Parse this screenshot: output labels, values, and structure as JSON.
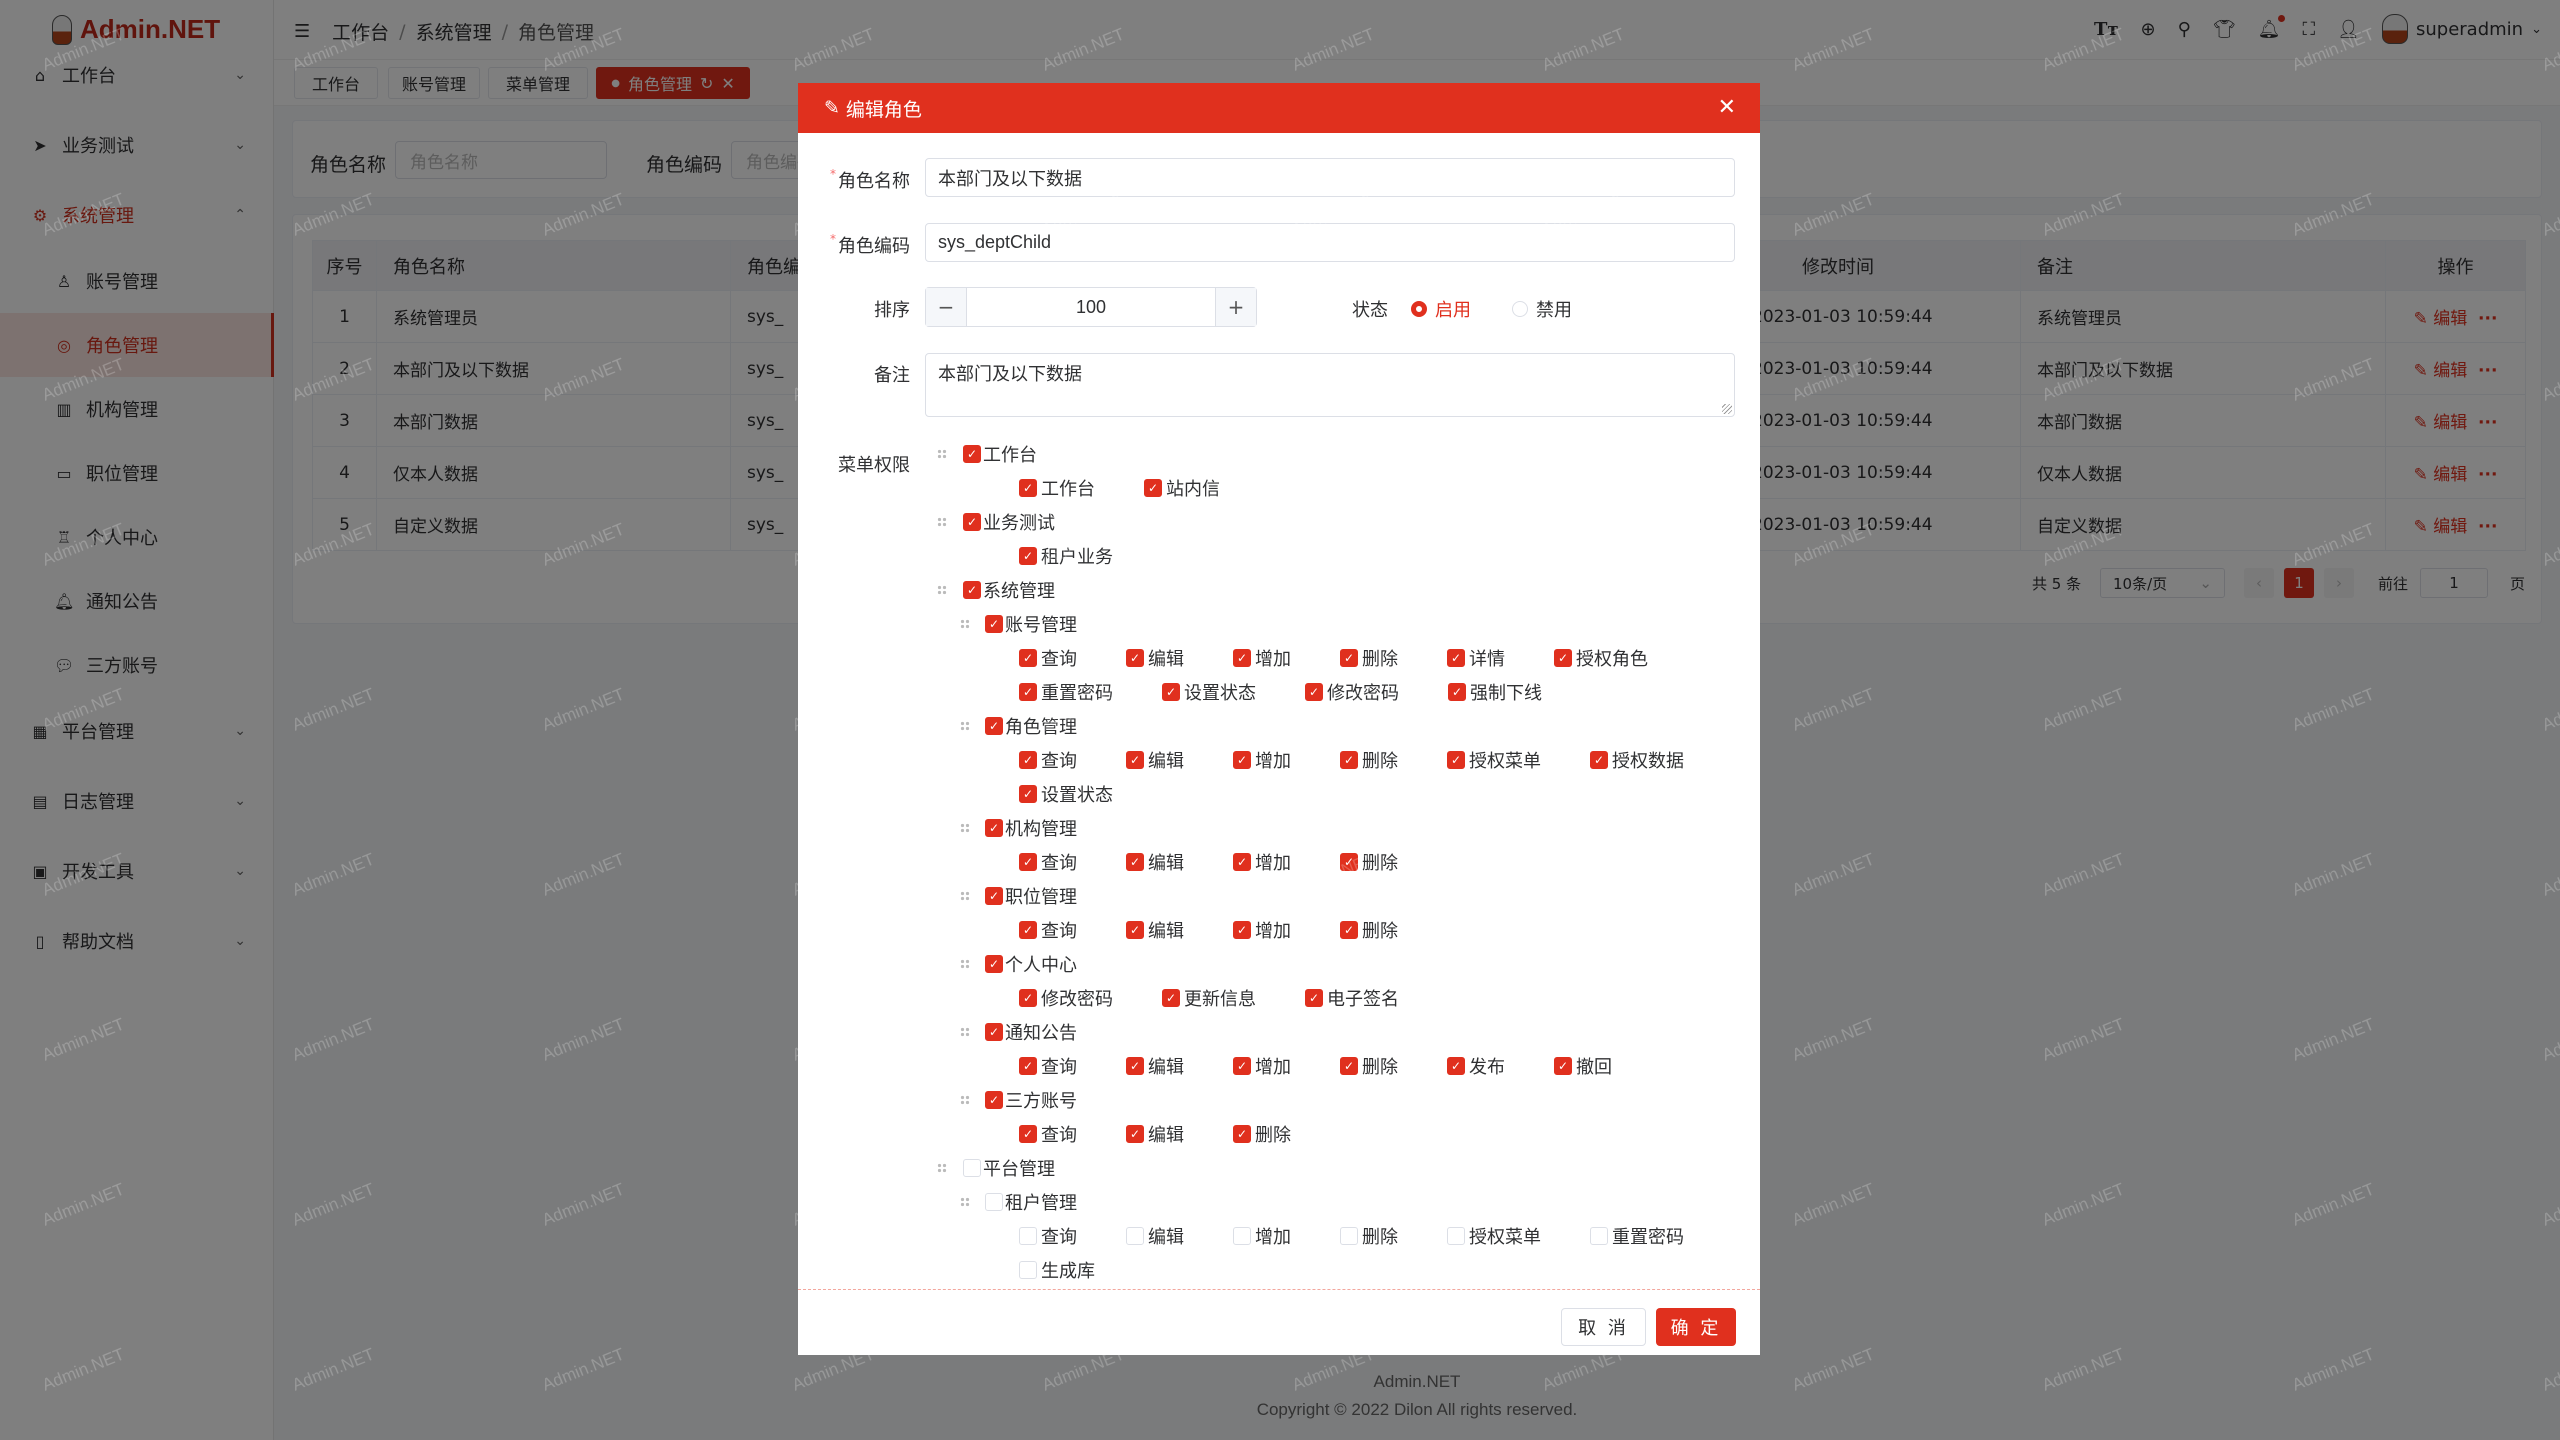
{
  "app": {
    "logo_text": "Admin.NET",
    "username": "superadmin"
  },
  "colors": {
    "primary": "#e0301e"
  },
  "breadcrumb": [
    "工作台",
    "系统管理",
    "角色管理"
  ],
  "header_icons": [
    "font-size-icon",
    "language-icon",
    "search-icon",
    "theme-shirt-icon",
    "bell-icon",
    "fullscreen-icon",
    "user-icon"
  ],
  "sidebar": {
    "items": [
      {
        "label": "工作台",
        "icon": "home-icon",
        "level": 0,
        "chev": "⌄"
      },
      {
        "label": "业务测试",
        "icon": "send-icon",
        "level": 0,
        "chev": "⌄"
      },
      {
        "label": "系统管理",
        "icon": "gear-icon",
        "level": 0,
        "chev": "⌃",
        "open": true
      },
      {
        "label": "账号管理",
        "icon": "user-icon",
        "level": 1
      },
      {
        "label": "角色管理",
        "icon": "role-icon",
        "level": 1,
        "active": true
      },
      {
        "label": "机构管理",
        "icon": "building-icon",
        "level": 1
      },
      {
        "label": "职位管理",
        "icon": "cup-icon",
        "level": 1
      },
      {
        "label": "个人中心",
        "icon": "person-icon",
        "level": 1
      },
      {
        "label": "通知公告",
        "icon": "bell-icon",
        "level": 1
      },
      {
        "label": "三方账号",
        "icon": "chat-icon",
        "level": 1
      },
      {
        "label": "平台管理",
        "icon": "grid-icon",
        "level": 0,
        "chev": "⌄"
      },
      {
        "label": "日志管理",
        "icon": "log-icon",
        "level": 0,
        "chev": "⌄"
      },
      {
        "label": "开发工具",
        "icon": "chip-icon",
        "level": 0,
        "chev": "⌄"
      },
      {
        "label": "帮助文档",
        "icon": "book-icon",
        "level": 0,
        "chev": "⌄"
      }
    ]
  },
  "tabs": [
    {
      "label": "工作台"
    },
    {
      "label": "账号管理"
    },
    {
      "label": "菜单管理"
    },
    {
      "label": "角色管理",
      "active": true
    }
  ],
  "search": {
    "name_label": "角色名称",
    "name_placeholder": "角色名称",
    "code_label": "角色编码",
    "code_placeholder": "角色编码"
  },
  "table": {
    "headers": {
      "index": "序号",
      "name": "角色名称",
      "code": "角色编码",
      "modified": "修改时间",
      "remark": "备注",
      "actions": "操作"
    },
    "rows": [
      {
        "index": "1",
        "name": "系统管理员",
        "code": "sys_",
        "modified": "2023-01-03 10:59:44",
        "remark": "系统管理员"
      },
      {
        "index": "2",
        "name": "本部门及以下数据",
        "code": "sys_",
        "modified": "2023-01-03 10:59:44",
        "remark": "本部门及以下数据"
      },
      {
        "index": "3",
        "name": "本部门数据",
        "code": "sys_",
        "modified": "2023-01-03 10:59:44",
        "remark": "本部门数据"
      },
      {
        "index": "4",
        "name": "仅本人数据",
        "code": "sys_",
        "modified": "2023-01-03 10:59:44",
        "remark": "仅本人数据"
      },
      {
        "index": "5",
        "name": "自定义数据",
        "code": "sys_",
        "modified": "2023-01-03 10:59:44",
        "remark": "自定义数据"
      }
    ],
    "edit_label": "编辑",
    "more_label": "···"
  },
  "pagination": {
    "total": "共 5 条",
    "page_size": "10条/页",
    "current": "1",
    "goto_label": "前往",
    "goto_value": "1",
    "page_suffix": "页"
  },
  "footer": {
    "line1": "Admin.NET",
    "line2": "Copyright © 2022 Dilon All rights reserved."
  },
  "watermark": "Admin.NET",
  "dialog": {
    "title": "编辑角色",
    "name_label": "角色名称",
    "name_value": "本部门及以下数据",
    "code_label": "角色编码",
    "code_value": "sys_deptChild",
    "sort_label": "排序",
    "sort_value": "100",
    "status_label": "状态",
    "status_options": [
      {
        "label": "启用",
        "selected": true
      },
      {
        "label": "禁用",
        "selected": false
      }
    ],
    "remark_label": "备注",
    "remark_value": "本部门及以下数据",
    "menu_label": "菜单权限",
    "cancel": "取 消",
    "confirm": "确 定",
    "tree": [
      {
        "label": "工作台",
        "checked": true,
        "level": 0,
        "leaves": [
          {
            "label": "工作台",
            "checked": true
          },
          {
            "label": "站内信",
            "checked": true
          }
        ]
      },
      {
        "label": "业务测试",
        "checked": true,
        "level": 0,
        "leaves": [
          {
            "label": "租户业务",
            "checked": true
          }
        ]
      },
      {
        "label": "系统管理",
        "checked": true,
        "level": 0
      },
      {
        "label": "账号管理",
        "checked": true,
        "level": 1,
        "leaves": [
          {
            "label": "查询",
            "checked": true
          },
          {
            "label": "编辑",
            "checked": true
          },
          {
            "label": "增加",
            "checked": true
          },
          {
            "label": "删除",
            "checked": true
          },
          {
            "label": "详情",
            "checked": true
          },
          {
            "label": "授权角色",
            "checked": true
          },
          {
            "label": "重置密码",
            "checked": true
          },
          {
            "label": "设置状态",
            "checked": true
          },
          {
            "label": "修改密码",
            "checked": true
          },
          {
            "label": "强制下线",
            "checked": true
          }
        ]
      },
      {
        "label": "角色管理",
        "checked": true,
        "level": 1,
        "leaves": [
          {
            "label": "查询",
            "checked": true
          },
          {
            "label": "编辑",
            "checked": true
          },
          {
            "label": "增加",
            "checked": true
          },
          {
            "label": "删除",
            "checked": true
          },
          {
            "label": "授权菜单",
            "checked": true
          },
          {
            "label": "授权数据",
            "checked": true
          },
          {
            "label": "设置状态",
            "checked": true
          }
        ]
      },
      {
        "label": "机构管理",
        "checked": true,
        "level": 1,
        "leaves": [
          {
            "label": "查询",
            "checked": true
          },
          {
            "label": "编辑",
            "checked": true
          },
          {
            "label": "增加",
            "checked": true
          },
          {
            "label": "删除",
            "checked": true
          }
        ]
      },
      {
        "label": "职位管理",
        "checked": true,
        "level": 1,
        "leaves": [
          {
            "label": "查询",
            "checked": true
          },
          {
            "label": "编辑",
            "checked": true
          },
          {
            "label": "增加",
            "checked": true
          },
          {
            "label": "删除",
            "checked": true
          }
        ]
      },
      {
        "label": "个人中心",
        "checked": true,
        "level": 1,
        "leaves": [
          {
            "label": "修改密码",
            "checked": true
          },
          {
            "label": "更新信息",
            "checked": true
          },
          {
            "label": "电子签名",
            "checked": true
          }
        ]
      },
      {
        "label": "通知公告",
        "checked": true,
        "level": 1,
        "leaves": [
          {
            "label": "查询",
            "checked": true
          },
          {
            "label": "编辑",
            "checked": true
          },
          {
            "label": "增加",
            "checked": true
          },
          {
            "label": "删除",
            "checked": true
          },
          {
            "label": "发布",
            "checked": true
          },
          {
            "label": "撤回",
            "checked": true
          }
        ]
      },
      {
        "label": "三方账号",
        "checked": true,
        "level": 1,
        "leaves": [
          {
            "label": "查询",
            "checked": true
          },
          {
            "label": "编辑",
            "checked": true
          },
          {
            "label": "删除",
            "checked": true
          }
        ]
      },
      {
        "label": "平台管理",
        "checked": false,
        "level": 0
      },
      {
        "label": "租户管理",
        "checked": false,
        "level": 1,
        "leaves": [
          {
            "label": "查询",
            "checked": false
          },
          {
            "label": "编辑",
            "checked": false
          },
          {
            "label": "增加",
            "checked": false
          },
          {
            "label": "删除",
            "checked": false
          },
          {
            "label": "授权菜单",
            "checked": false
          },
          {
            "label": "重置密码",
            "checked": false
          },
          {
            "label": "生成库",
            "checked": false
          }
        ]
      }
    ]
  }
}
